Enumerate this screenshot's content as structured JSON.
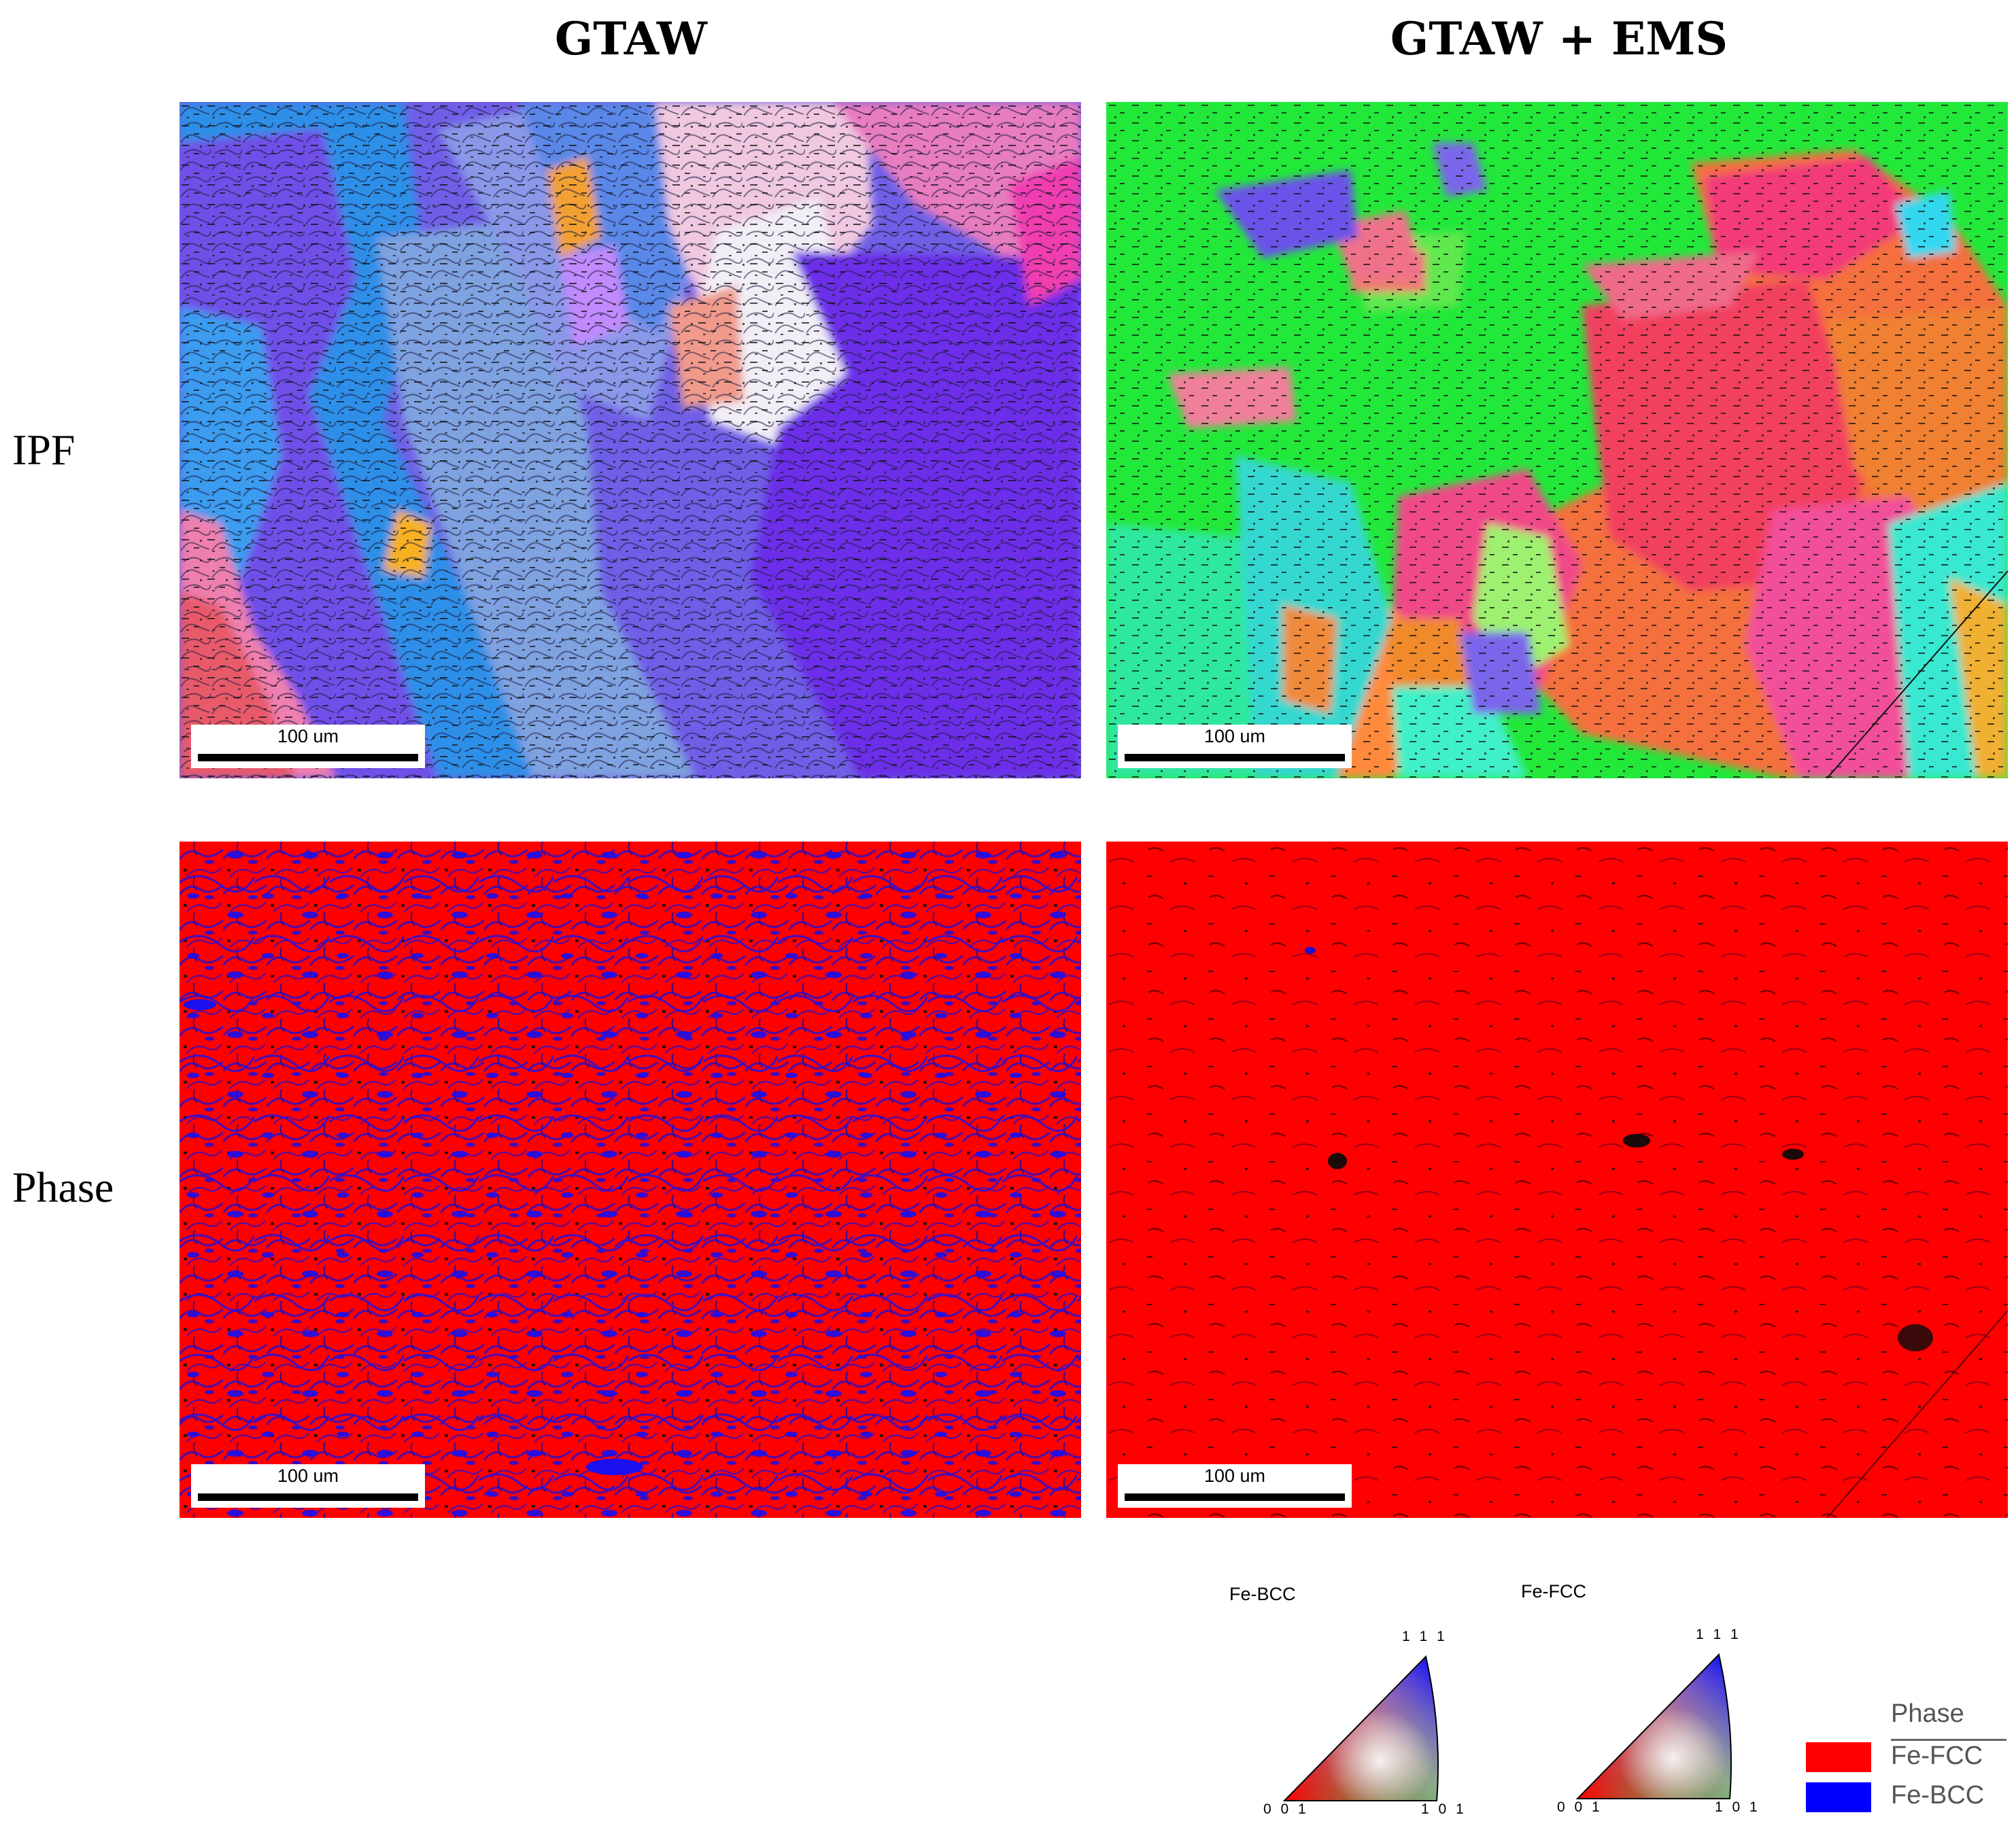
{
  "columns": [
    {
      "title": "GTAW"
    },
    {
      "title": "GTAW + EMS"
    }
  ],
  "rows": [
    {
      "label": "IPF"
    },
    {
      "label": "Phase"
    }
  ],
  "scale_bar_label": "100 um",
  "ipf_key": {
    "bcc": {
      "label": "Fe-BCC",
      "corner_top": "1 1 1",
      "corner_left": "0 0 1",
      "corner_right": "1 0 1"
    },
    "fcc": {
      "label": "Fe-FCC",
      "corner_top": "1 1 1",
      "corner_left": "0 0 1",
      "corner_right": "1 0 1"
    }
  },
  "phase_legend": {
    "title": "Phase",
    "items": [
      {
        "label": "Fe-FCC",
        "color": "#ff0000"
      },
      {
        "label": "Fe-BCC",
        "color": "#0000ff"
      }
    ]
  }
}
